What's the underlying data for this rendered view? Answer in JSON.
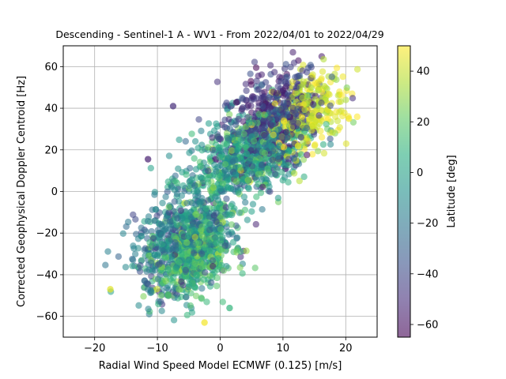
{
  "chart_data": {
    "type": "scatter",
    "title": "Descending - Sentinel-1 A - WV1 - From 2022/04/01 to 2022/04/29",
    "xlabel": "Radial Wind Speed Model ECMWF (0.125) [m/s]",
    "ylabel": "Corrected Geophysical Doppler Centroid [Hz]",
    "xlim": [
      -25,
      25
    ],
    "ylim": [
      -70,
      70
    ],
    "xticks": [
      -20,
      -10,
      0,
      10,
      20
    ],
    "yticks": [
      -60,
      -40,
      -20,
      0,
      20,
      40,
      60
    ],
    "grid": true,
    "colormap": "viridis",
    "marker_alpha": 0.55,
    "colorbar": {
      "label": "Latitude [deg]",
      "range": [
        -65,
        50
      ],
      "ticks": [
        -60,
        -40,
        -20,
        0,
        20,
        40
      ]
    },
    "clusters": [
      {
        "center": [
          8,
          35
        ],
        "spread": [
          4,
          12
        ],
        "lat_mean": -45,
        "lat_sd": 10
      },
      {
        "center": [
          14,
          38
        ],
        "spread": [
          3,
          10
        ],
        "lat_mean": 42,
        "lat_sd": 6
      },
      {
        "center": [
          4,
          15
        ],
        "spread": [
          5,
          10
        ],
        "lat_mean": 0,
        "lat_sd": 15
      },
      {
        "center": [
          -6,
          -25
        ],
        "spread": [
          4,
          12
        ],
        "lat_mean": -20,
        "lat_sd": 15
      },
      {
        "center": [
          -4,
          -30
        ],
        "spread": [
          3,
          10
        ],
        "lat_mean": 15,
        "lat_sd": 10
      }
    ],
    "notable_points": [
      {
        "x": -17.5,
        "y": -47,
        "lat": 45
      },
      {
        "x": 20.5,
        "y": 35,
        "lat": 48
      },
      {
        "x": -11.5,
        "y": 15.5,
        "lat": -55
      },
      {
        "x": -2.5,
        "y": -63,
        "lat": 48
      },
      {
        "x": 1.5,
        "y": -56,
        "lat": 10
      },
      {
        "x": -7.5,
        "y": 41,
        "lat": -50
      }
    ]
  }
}
